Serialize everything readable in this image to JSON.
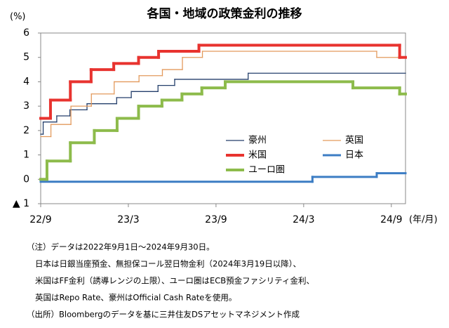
{
  "chart_data": {
    "type": "step-line",
    "title": "各国・地域の政策金利の推移",
    "y_label": "(%)",
    "x_label": "(年/月)",
    "xlim": [
      0,
      24.97
    ],
    "ylim": [
      -1,
      6
    ],
    "yticks": [
      {
        "value": -1,
        "label": "▲ 1"
      },
      0,
      1,
      2,
      3,
      4,
      5,
      6
    ],
    "xticks": [
      {
        "value": 0,
        "label": "22/9"
      },
      {
        "value": 6,
        "label": "23/3"
      },
      {
        "value": 12,
        "label": "23/9"
      },
      {
        "value": 18,
        "label": "24/3"
      },
      {
        "value": 24,
        "label": "24/9"
      }
    ],
    "series": [
      {
        "name": "豪州",
        "color": "#243f6b",
        "line_width": 1.3,
        "x": [
          0,
          0.17,
          1.1,
          2.0,
          3.17,
          5.2,
          6.2,
          8.03,
          9.17,
          14.2
        ],
        "values": [
          1.85,
          2.35,
          2.6,
          2.85,
          3.1,
          3.35,
          3.6,
          3.85,
          4.1,
          4.35
        ]
      },
      {
        "name": "英国",
        "color": "#e39a5c",
        "line_width": 1.3,
        "x": [
          0,
          0.7,
          2.07,
          3.47,
          5.03,
          6.73,
          8.33,
          9.7,
          11.07,
          23.0
        ],
        "values": [
          1.75,
          2.25,
          3.0,
          3.5,
          4.0,
          4.25,
          4.5,
          5.0,
          5.25,
          5.0
        ]
      },
      {
        "name": "米国",
        "color": "#e8332f",
        "line_width": 4,
        "x": [
          0,
          0.67,
          2.03,
          3.45,
          5.0,
          6.7,
          8.07,
          10.83,
          24.57
        ],
        "values": [
          2.5,
          3.25,
          4.0,
          4.5,
          4.75,
          5.0,
          5.25,
          5.5,
          5.0
        ]
      },
      {
        "name": "日本",
        "color": "#3c7dc4",
        "line_width": 3,
        "x": [
          0,
          18.6,
          23.0
        ],
        "values": [
          -0.1,
          0.1,
          0.25
        ]
      },
      {
        "name": "ユーロ圏",
        "color": "#8dbb4b",
        "line_width": 4,
        "x": [
          0,
          0.43,
          2.03,
          3.67,
          5.23,
          6.7,
          8.3,
          9.67,
          11.03,
          12.63,
          21.37,
          24.57
        ],
        "values": [
          0,
          0.75,
          1.5,
          2.0,
          2.5,
          3.0,
          3.25,
          3.5,
          3.75,
          4.0,
          3.75,
          3.5
        ]
      }
    ],
    "notes": [
      "（注）データは2022年9月1日～2024年9月30日。",
      "日本は日銀当座預金、無担保コール翌日物金利（2024年3月19日以降）、",
      "米国はFF金利（誘導レンジの上限）、ユーロ圏はECB預金ファシリティ金利、",
      "英国はRepo Rate、豪州はOfficial Cash Rateを使用。",
      "（出所）Bloombergのデータを基に三井住友DSアセットマネジメント作成"
    ]
  }
}
